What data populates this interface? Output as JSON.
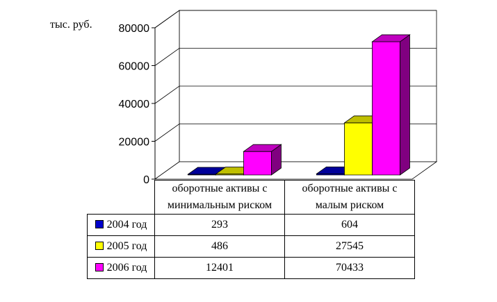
{
  "unit_label": "тыс. руб.",
  "chart_data": {
    "type": "bar",
    "categories": [
      "оборотные активы с минимальным риском",
      "оборотные активы с малым риском"
    ],
    "category_lines": [
      [
        "оборотные активы с",
        "минимальным риском"
      ],
      [
        "оборотные активы с",
        "малым риском"
      ]
    ],
    "series": [
      {
        "name": "2004 год",
        "values": [
          293,
          604
        ],
        "color": "#0000CC"
      },
      {
        "name": "2005 год",
        "values": [
          486,
          27545
        ],
        "color": "#FFFF00"
      },
      {
        "name": "2006 год",
        "values": [
          12401,
          70433
        ],
        "color": "#FF00FF"
      }
    ],
    "ylim": [
      0,
      80000
    ],
    "yticks": [
      "0",
      "20000",
      "40000",
      "60000",
      "80000"
    ],
    "grid": true,
    "legend": "data table"
  }
}
